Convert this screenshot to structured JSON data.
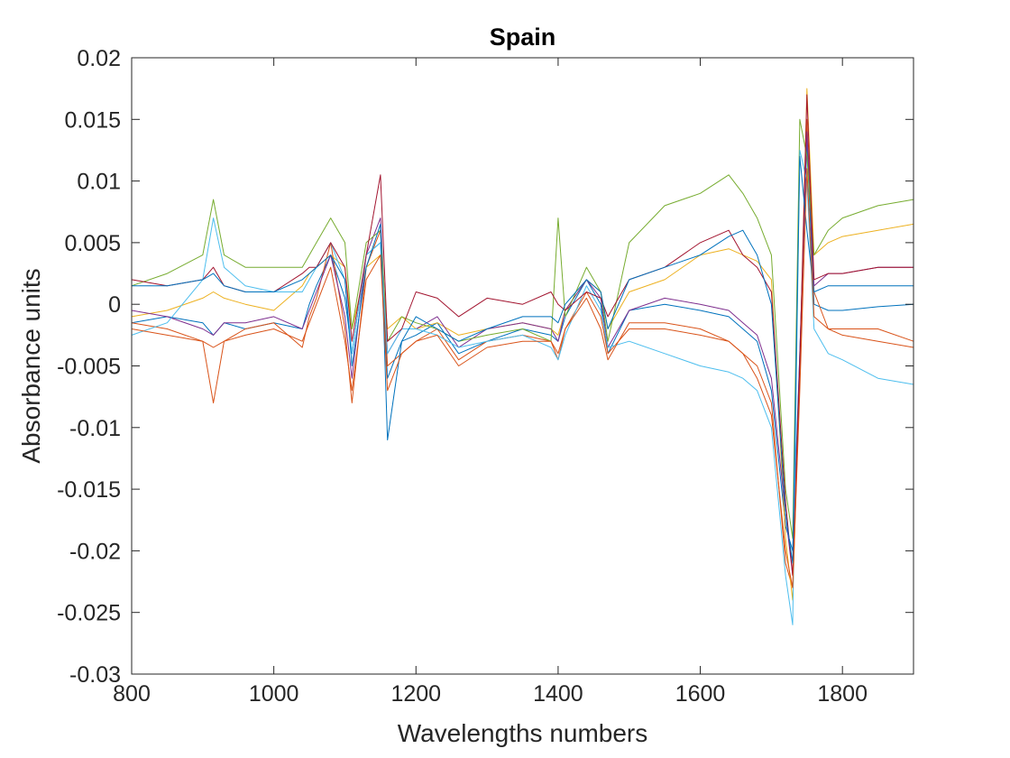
{
  "chart_data": {
    "type": "line",
    "title": "Spain",
    "xlabel": "Wavelengths numbers",
    "ylabel": "Absorbance units",
    "xlim": [
      800,
      1900
    ],
    "ylim": [
      -0.03,
      0.02
    ],
    "xticks": [
      800,
      1000,
      1200,
      1400,
      1600,
      1800
    ],
    "yticks": [
      -0.03,
      -0.025,
      -0.02,
      -0.015,
      -0.01,
      -0.005,
      0,
      0.005,
      0.01,
      0.015,
      0.02
    ],
    "xtick_labels": [
      "800",
      "1000",
      "1200",
      "1400",
      "1600",
      "1800"
    ],
    "ytick_labels": [
      "-0.03",
      "-0.025",
      "-0.02",
      "-0.015",
      "-0.01",
      "-0.005",
      "0",
      "0.005",
      "0.01",
      "0.015",
      "0.02"
    ],
    "grid": false,
    "box": true,
    "legend": "none",
    "colors": [
      "#0072BD",
      "#D95319",
      "#EDB120",
      "#7E2F8E",
      "#77AC30",
      "#4DBEEE",
      "#A2142F"
    ],
    "series": [
      {
        "x": [
          800,
          850,
          900,
          915,
          930,
          960,
          1000,
          1040,
          1050,
          1060,
          1080,
          1100,
          1110,
          1130,
          1150,
          1160,
          1180,
          1200,
          1230,
          1260,
          1300,
          1350,
          1390,
          1400,
          1410,
          1440,
          1460,
          1470,
          1500,
          1550,
          1600,
          1640,
          1660,
          1680,
          1700,
          1720,
          1730,
          1740,
          1750,
          1760,
          1780,
          1800,
          1850,
          1900
        ],
        "y": [
          -0.0015,
          -0.001,
          -0.0015,
          -0.0025,
          -0.0015,
          -0.002,
          -0.0015,
          -0.002,
          0.0,
          0.0015,
          0.004,
          0.0005,
          -0.004,
          0.004,
          0.005,
          -0.006,
          -0.003,
          -0.0025,
          -0.0015,
          -0.004,
          -0.003,
          -0.002,
          -0.0025,
          -0.003,
          -0.001,
          0.002,
          0.0,
          -0.004,
          -0.0005,
          0.0,
          -0.0005,
          -0.001,
          -0.002,
          -0.003,
          -0.007,
          -0.018,
          -0.02,
          -0.004,
          0.013,
          0.0,
          -0.0005,
          -0.0005,
          -0.0002,
          0.0
        ]
      },
      {
        "x": [
          800,
          850,
          900,
          915,
          930,
          960,
          1000,
          1040,
          1050,
          1060,
          1080,
          1100,
          1110,
          1130,
          1150,
          1160,
          1180,
          1200,
          1230,
          1260,
          1300,
          1350,
          1390,
          1400,
          1410,
          1440,
          1460,
          1470,
          1500,
          1550,
          1600,
          1640,
          1660,
          1680,
          1700,
          1720,
          1730,
          1740,
          1750,
          1760,
          1780,
          1800,
          1850,
          1900
        ],
        "y": [
          -0.0015,
          -0.002,
          -0.003,
          -0.008,
          -0.003,
          -0.002,
          -0.0015,
          -0.0035,
          -0.001,
          0.0005,
          0.005,
          -0.002,
          -0.008,
          0.003,
          0.006,
          -0.005,
          -0.004,
          -0.003,
          -0.002,
          -0.0045,
          -0.003,
          -0.0025,
          -0.003,
          -0.0045,
          -0.002,
          0.001,
          -0.001,
          -0.004,
          -0.002,
          -0.002,
          -0.0025,
          -0.003,
          -0.004,
          -0.005,
          -0.008,
          -0.021,
          -0.023,
          -0.006,
          0.015,
          0.001,
          -0.002,
          -0.002,
          -0.002,
          -0.003
        ]
      },
      {
        "x": [
          800,
          850,
          900,
          915,
          930,
          960,
          1000,
          1040,
          1050,
          1060,
          1080,
          1100,
          1110,
          1130,
          1150,
          1160,
          1180,
          1200,
          1230,
          1260,
          1300,
          1350,
          1390,
          1400,
          1410,
          1440,
          1460,
          1470,
          1500,
          1550,
          1600,
          1640,
          1660,
          1680,
          1700,
          1720,
          1730,
          1740,
          1750,
          1760,
          1780,
          1800,
          1850,
          1900
        ],
        "y": [
          -0.001,
          -0.0005,
          0.0005,
          0.001,
          0.0005,
          0.0,
          -0.0005,
          0.0015,
          0.0025,
          0.003,
          0.004,
          0.003,
          -0.002,
          0.003,
          0.004,
          -0.002,
          -0.001,
          -0.002,
          -0.0015,
          -0.0025,
          -0.002,
          -0.0015,
          -0.002,
          -0.0025,
          -0.0005,
          0.002,
          0.001,
          -0.002,
          0.001,
          0.002,
          0.004,
          0.0045,
          0.004,
          0.0035,
          0.002,
          -0.019,
          -0.024,
          -0.005,
          0.0175,
          0.004,
          0.005,
          0.0055,
          0.006,
          0.0065
        ]
      },
      {
        "x": [
          800,
          850,
          900,
          915,
          930,
          960,
          1000,
          1040,
          1050,
          1060,
          1080,
          1100,
          1110,
          1130,
          1150,
          1160,
          1180,
          1200,
          1230,
          1260,
          1300,
          1350,
          1390,
          1400,
          1410,
          1440,
          1460,
          1470,
          1500,
          1550,
          1600,
          1640,
          1660,
          1680,
          1700,
          1720,
          1730,
          1740,
          1750,
          1760,
          1780,
          1800,
          1850,
          1900
        ],
        "y": [
          -0.0005,
          -0.001,
          -0.002,
          -0.0025,
          -0.0015,
          -0.0015,
          -0.001,
          -0.002,
          -0.0005,
          0.001,
          0.004,
          -0.001,
          -0.006,
          0.004,
          0.007,
          -0.004,
          -0.002,
          -0.002,
          -0.001,
          -0.0035,
          -0.002,
          -0.0015,
          -0.002,
          -0.003,
          -0.0005,
          0.002,
          0.0005,
          -0.0035,
          -0.0005,
          0.0005,
          0.0,
          -0.0005,
          -0.0015,
          -0.0025,
          -0.006,
          -0.017,
          -0.022,
          -0.004,
          0.014,
          0.0015,
          0.0025,
          0.0025,
          0.003,
          0.003
        ]
      },
      {
        "x": [
          800,
          850,
          900,
          915,
          930,
          960,
          1000,
          1040,
          1050,
          1060,
          1080,
          1100,
          1110,
          1130,
          1150,
          1160,
          1180,
          1200,
          1230,
          1260,
          1300,
          1350,
          1390,
          1400,
          1410,
          1440,
          1460,
          1470,
          1500,
          1550,
          1600,
          1640,
          1660,
          1680,
          1700,
          1720,
          1730,
          1740,
          1750,
          1760,
          1780,
          1800,
          1850,
          1900
        ],
        "y": [
          0.0015,
          0.0025,
          0.004,
          0.0085,
          0.004,
          0.003,
          0.003,
          0.003,
          0.004,
          0.005,
          0.007,
          0.005,
          -0.002,
          0.005,
          0.006,
          -0.003,
          -0.001,
          -0.0015,
          -0.002,
          -0.003,
          -0.0025,
          -0.002,
          -0.003,
          0.007,
          -0.001,
          0.003,
          0.001,
          -0.003,
          0.005,
          0.008,
          0.009,
          0.0105,
          0.009,
          0.007,
          0.004,
          -0.015,
          -0.019,
          0.015,
          0.012,
          0.004,
          0.006,
          0.007,
          0.008,
          0.0085
        ]
      },
      {
        "x": [
          800,
          850,
          900,
          915,
          930,
          960,
          1000,
          1040,
          1050,
          1060,
          1080,
          1100,
          1110,
          1130,
          1150,
          1160,
          1180,
          1200,
          1230,
          1260,
          1300,
          1350,
          1390,
          1400,
          1410,
          1440,
          1460,
          1470,
          1500,
          1550,
          1600,
          1640,
          1660,
          1680,
          1700,
          1720,
          1730,
          1740,
          1750,
          1760,
          1780,
          1800,
          1850,
          1900
        ],
        "y": [
          -0.0025,
          -0.0015,
          0.002,
          0.007,
          0.003,
          0.0015,
          0.001,
          0.001,
          0.002,
          0.003,
          0.005,
          0.002,
          -0.004,
          0.004,
          0.005,
          -0.004,
          -0.002,
          -0.002,
          -0.0025,
          -0.0035,
          -0.003,
          -0.0025,
          -0.0035,
          -0.0045,
          -0.0025,
          0.0015,
          -0.0005,
          -0.0035,
          -0.003,
          -0.004,
          -0.005,
          -0.0055,
          -0.006,
          -0.007,
          -0.01,
          -0.022,
          -0.026,
          0.0125,
          0.01,
          -0.002,
          -0.004,
          -0.0045,
          -0.006,
          -0.0065
        ]
      },
      {
        "x": [
          800,
          850,
          900,
          915,
          930,
          960,
          1000,
          1040,
          1050,
          1060,
          1080,
          1100,
          1110,
          1130,
          1150,
          1160,
          1180,
          1200,
          1230,
          1260,
          1300,
          1350,
          1390,
          1400,
          1410,
          1440,
          1460,
          1470,
          1500,
          1550,
          1600,
          1640,
          1660,
          1680,
          1700,
          1720,
          1730,
          1740,
          1750,
          1760,
          1780,
          1800,
          1850,
          1900
        ],
        "y": [
          0.002,
          0.0015,
          0.002,
          0.003,
          0.0015,
          0.001,
          0.001,
          0.0025,
          0.003,
          0.003,
          0.005,
          0.003,
          -0.003,
          0.004,
          0.0105,
          -0.003,
          -0.002,
          0.001,
          0.0005,
          -0.001,
          0.0005,
          0.0,
          0.001,
          0.0,
          -0.0005,
          0.001,
          0.0005,
          -0.001,
          0.002,
          0.003,
          0.005,
          0.006,
          0.004,
          0.003,
          0.001,
          -0.016,
          -0.022,
          -0.005,
          0.017,
          0.002,
          0.0025,
          0.0025,
          0.003,
          0.003
        ]
      },
      {
        "x": [
          800,
          850,
          900,
          915,
          930,
          960,
          1000,
          1040,
          1050,
          1060,
          1080,
          1100,
          1110,
          1130,
          1150,
          1160,
          1180,
          1200,
          1230,
          1260,
          1300,
          1350,
          1390,
          1400,
          1410,
          1440,
          1460,
          1470,
          1500,
          1550,
          1600,
          1640,
          1660,
          1680,
          1700,
          1720,
          1730,
          1740,
          1750,
          1760,
          1780,
          1800,
          1850,
          1900
        ],
        "y": [
          0.0015,
          0.0015,
          0.002,
          0.0025,
          0.0015,
          0.001,
          0.001,
          0.002,
          0.0025,
          0.003,
          0.004,
          0.002,
          -0.005,
          0.003,
          0.0065,
          -0.011,
          -0.003,
          -0.001,
          -0.002,
          -0.003,
          -0.002,
          -0.001,
          -0.001,
          -0.0015,
          0.0,
          0.002,
          0.001,
          -0.002,
          0.002,
          0.003,
          0.004,
          0.0055,
          0.006,
          0.004,
          0.0,
          -0.017,
          -0.021,
          0.012,
          0.006,
          0.001,
          0.0015,
          0.0015,
          0.0015,
          0.0015
        ]
      },
      {
        "x": [
          800,
          850,
          900,
          915,
          930,
          960,
          1000,
          1040,
          1050,
          1060,
          1080,
          1100,
          1110,
          1130,
          1150,
          1160,
          1180,
          1200,
          1230,
          1260,
          1300,
          1350,
          1390,
          1400,
          1410,
          1440,
          1460,
          1470,
          1500,
          1550,
          1600,
          1640,
          1660,
          1680,
          1700,
          1720,
          1730,
          1740,
          1750,
          1760,
          1780,
          1800,
          1850,
          1900
        ],
        "y": [
          -0.002,
          -0.0025,
          -0.003,
          -0.0035,
          -0.003,
          -0.0025,
          -0.002,
          -0.003,
          -0.0015,
          0.0,
          0.003,
          -0.003,
          -0.007,
          0.002,
          0.004,
          -0.007,
          -0.004,
          -0.003,
          -0.0025,
          -0.005,
          -0.0035,
          -0.003,
          -0.003,
          -0.004,
          -0.002,
          0.0005,
          -0.002,
          -0.0045,
          -0.0015,
          -0.0015,
          -0.002,
          -0.003,
          -0.004,
          -0.006,
          -0.009,
          -0.02,
          -0.023,
          -0.007,
          0.011,
          -0.001,
          -0.002,
          -0.0025,
          -0.003,
          -0.0035
        ]
      }
    ]
  }
}
